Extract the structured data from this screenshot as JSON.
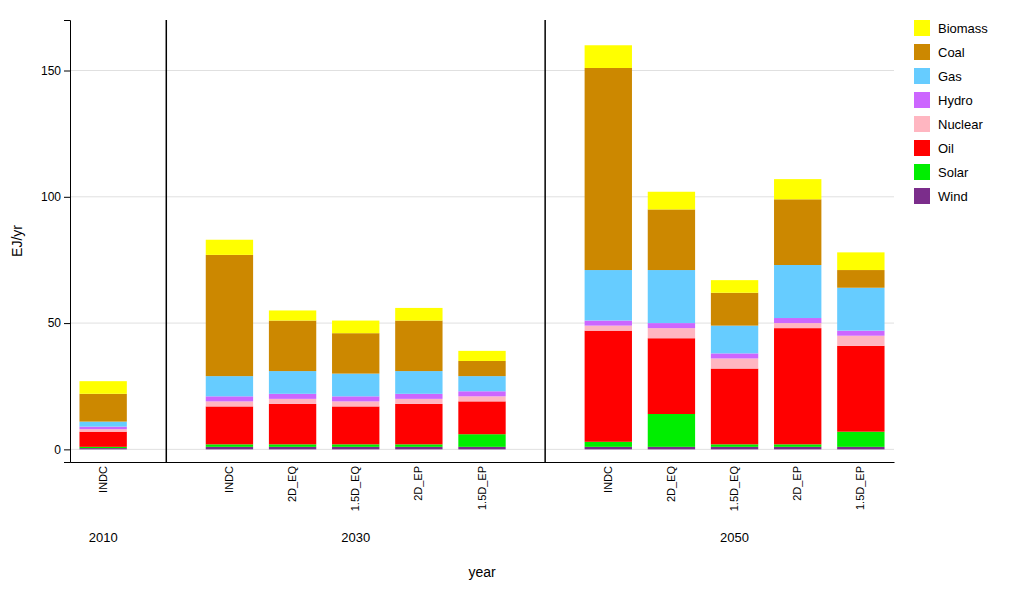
{
  "chart_data": {
    "type": "bar",
    "stacked": true,
    "categories": [
      "INDC",
      "INDC",
      "2D_EQ",
      "1.5D_EQ",
      "2D_EP",
      "1.5D_EP",
      "INDC",
      "2D_EQ",
      "1.5D_EQ",
      "2D_EP",
      "1.5D_EP"
    ],
    "groups": [
      "2010",
      "2030",
      "2030",
      "2030",
      "2030",
      "2030",
      "2050",
      "2050",
      "2050",
      "2050",
      "2050"
    ],
    "series": [
      {
        "name": "Wind",
        "color": "#7B2D8B",
        "values": [
          0.5,
          1.0,
          1.0,
          1.0,
          1.0,
          1.0,
          1.0,
          1.0,
          1.0,
          1.0,
          1.0
        ]
      },
      {
        "name": "Solar",
        "color": "#00EE00",
        "values": [
          0.5,
          1.0,
          1.0,
          1.0,
          1.0,
          5.0,
          2.0,
          13.0,
          1.0,
          1.0,
          6.0
        ]
      },
      {
        "name": "Oil",
        "color": "#FF0000",
        "values": [
          6.0,
          15.0,
          16.0,
          15.0,
          16.0,
          13.0,
          44.0,
          30.0,
          30.0,
          46.0,
          34.0
        ]
      },
      {
        "name": "Nuclear",
        "color": "#FFB6C1",
        "values": [
          1.0,
          2.0,
          2.0,
          2.0,
          2.0,
          2.0,
          2.0,
          4.0,
          4.0,
          2.0,
          4.0
        ]
      },
      {
        "name": "Hydro",
        "color": "#CC66FF",
        "values": [
          1.0,
          2.0,
          2.0,
          2.0,
          2.0,
          2.0,
          2.0,
          2.0,
          2.0,
          2.0,
          2.0
        ]
      },
      {
        "name": "Gas",
        "color": "#66CCFF",
        "values": [
          2.0,
          8.0,
          9.0,
          9.0,
          9.0,
          6.0,
          20.0,
          21.0,
          11.0,
          21.0,
          17.0
        ]
      },
      {
        "name": "Coal",
        "color": "#CC8800",
        "values": [
          11.0,
          48.0,
          20.0,
          16.0,
          20.0,
          6.0,
          80.0,
          24.0,
          13.0,
          26.0,
          7.0
        ]
      },
      {
        "name": "Biomass",
        "color": "#FFFF00",
        "values": [
          5.0,
          6.0,
          4.0,
          5.0,
          5.0,
          4.0,
          9.0,
          7.0,
          5.0,
          8.0,
          7.0
        ]
      }
    ],
    "xlabel": "year",
    "ylabel": "EJ/yr",
    "ylim": [
      -5,
      170
    ],
    "yticks": [
      0,
      50,
      100,
      150
    ],
    "grid": true,
    "legend": "right"
  }
}
